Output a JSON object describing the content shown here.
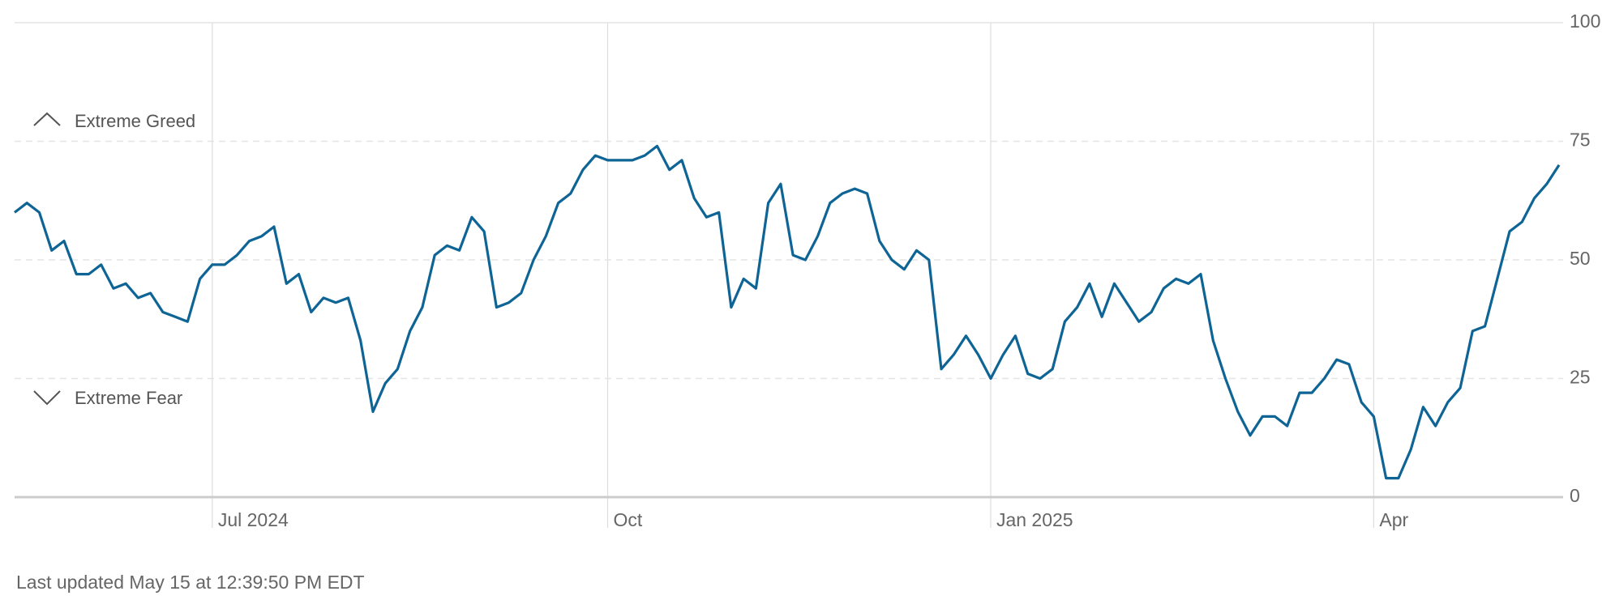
{
  "chart_data": {
    "type": "line",
    "annotations": {
      "greed": "Extreme Greed",
      "fear": "Extreme Fear"
    },
    "footer": "Last updated May 15 at 12:39:50 PM EDT",
    "categories": [
      null,
      null,
      null,
      null,
      null,
      null,
      null,
      null,
      null,
      null,
      null,
      null,
      null,
      null,
      null,
      null,
      "Jul 2024",
      null,
      null,
      null,
      null,
      null,
      null,
      null,
      null,
      null,
      null,
      null,
      null,
      null,
      null,
      null,
      null,
      null,
      null,
      null,
      null,
      null,
      null,
      null,
      null,
      null,
      null,
      null,
      null,
      null,
      null,
      null,
      "Oct",
      null,
      null,
      null,
      null,
      null,
      null,
      null,
      null,
      null,
      null,
      null,
      null,
      null,
      null,
      null,
      null,
      null,
      null,
      null,
      null,
      null,
      null,
      null,
      null,
      null,
      null,
      null,
      null,
      null,
      null,
      "Jan 2025",
      null,
      null,
      null,
      null,
      null,
      null,
      null,
      null,
      null,
      null,
      null,
      null,
      null,
      null,
      null,
      null,
      null,
      null,
      null,
      null,
      null,
      null,
      null,
      null,
      null,
      null,
      null,
      null,
      null,
      null,
      "Apr",
      null,
      null,
      null,
      null,
      null,
      null,
      null,
      null,
      null,
      null,
      null,
      null,
      null,
      null,
      null
    ],
    "series": [
      {
        "color": "#0e6595",
        "values": [
          60,
          62,
          60,
          52,
          54,
          47,
          47,
          49,
          44,
          45,
          42,
          43,
          39,
          38,
          37,
          46,
          49,
          49,
          51,
          54,
          55,
          57,
          45,
          47,
          39,
          42,
          41,
          42,
          33,
          18,
          24,
          27,
          35,
          40,
          51,
          53,
          52,
          59,
          56,
          40,
          41,
          43,
          50,
          55,
          62,
          64,
          69,
          72,
          71,
          71,
          71,
          72,
          74,
          69,
          71,
          63,
          59,
          60,
          40,
          46,
          44,
          62,
          66,
          51,
          50,
          55,
          62,
          64,
          65,
          64,
          54,
          50,
          48,
          52,
          50,
          27,
          30,
          34,
          30,
          25,
          30,
          34,
          26,
          25,
          27,
          37,
          40,
          45,
          38,
          45,
          41,
          37,
          39,
          44,
          46,
          45,
          47,
          33,
          25,
          18,
          13,
          17,
          17,
          15,
          22,
          22,
          25,
          29,
          28,
          20,
          17,
          4,
          4,
          10,
          19,
          15,
          20,
          23,
          35,
          36,
          46,
          56,
          58,
          63,
          66,
          70
        ]
      }
    ],
    "ylim": [
      0,
      100
    ],
    "yticks": [
      0,
      25,
      50,
      75,
      100
    ],
    "grid": true
  }
}
